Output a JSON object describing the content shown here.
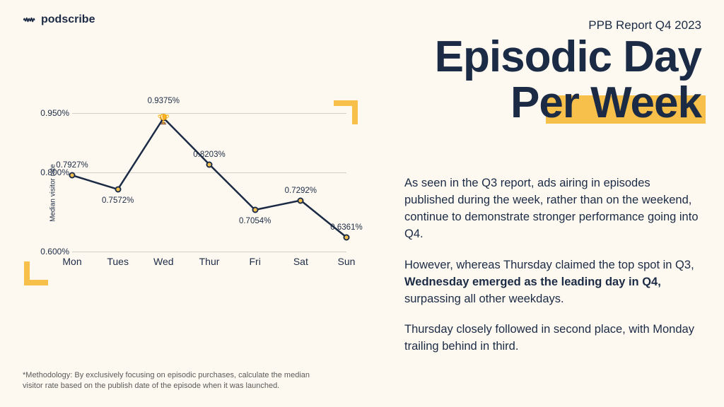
{
  "brand": {
    "name": "podscribe"
  },
  "header": {
    "subtitle": "PPB Report Q4 2023",
    "title_line1": "Episodic Day",
    "title_line2": "Per Week"
  },
  "body": {
    "p1": "As seen in the Q3 report, ads airing in episodes published during the week, rather than on the weekend, continue to demonstrate stronger performance going into Q4.",
    "p2_a": "However, whereas Thursday claimed the top spot in Q3, ",
    "p2_bold": "Wednesday emerged as the leading day in Q4,",
    "p2_b": " surpassing all other weekdays.",
    "p3": "Thursday closely followed in second place, with Monday trailing behind in third."
  },
  "footnote": "*Methodology: By exclusively focusing on episodic purchases, calculate the median visitor rate based on the publish date of the episode when it was launched.",
  "chart": {
    "type": "line",
    "ylabel": "Median visitor rate",
    "ylim": [
      0.6,
      0.95
    ],
    "yticks": [
      0.6,
      0.8,
      0.95
    ],
    "ytick_labels": [
      "0.600%",
      "0.800%",
      "0.950%"
    ],
    "categories": [
      "Mon",
      "Tues",
      "Wed",
      "Thur",
      "Fri",
      "Sat",
      "Sun"
    ],
    "values": [
      0.7927,
      0.7572,
      0.9375,
      0.8203,
      0.7054,
      0.7292,
      0.6361
    ],
    "value_labels": [
      "0.7927%",
      "0.7572%",
      "0.9375%",
      "0.8203%",
      "0.7054%",
      "0.7292%",
      "0.6361%"
    ],
    "label_offsets": [
      "above",
      "below",
      "above",
      "above",
      "below",
      "above",
      "above"
    ],
    "peak_index": 2,
    "line_color": "#1c2b45",
    "line_width": 2.5,
    "marker_ring_color": "#1c2b45",
    "marker_fill_color": "#f7c04a",
    "grid_color": "#d0cec7",
    "background_color": "#fdf9f0",
    "accent_color": "#f7c04a",
    "title_fontsize": 62,
    "label_fontsize": 12
  }
}
